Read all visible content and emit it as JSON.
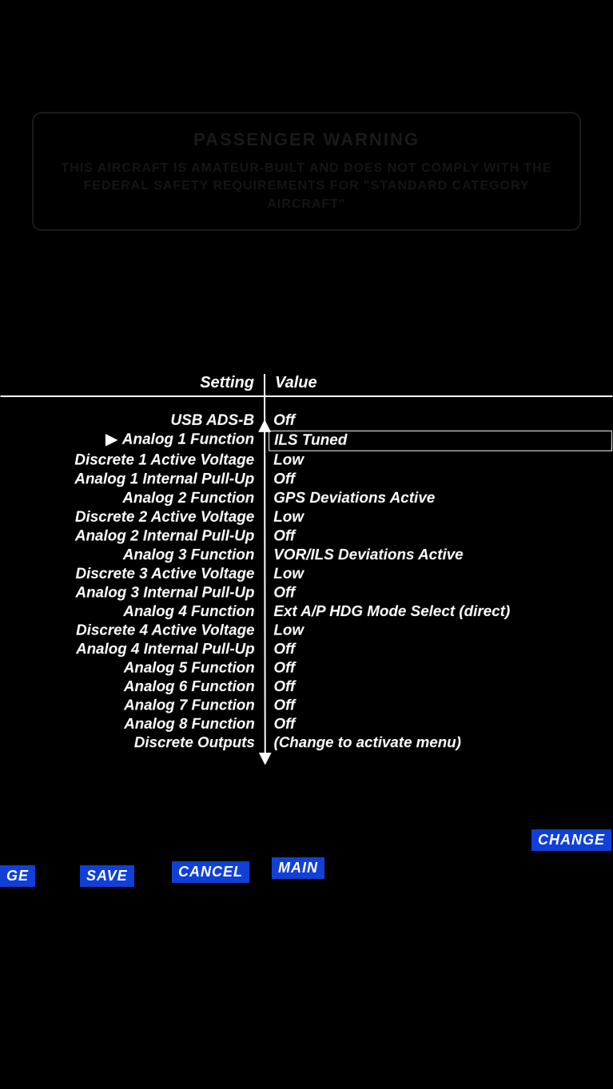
{
  "warning": {
    "title": "PASSENGER WARNING",
    "text": "THIS AIRCRAFT IS AMATEUR-BUILT AND DOES NOT COMPLY WITH THE FEDERAL SAFETY REQUIREMENTS FOR \"STANDARD CATEGORY AIRCRAFT\""
  },
  "headers": {
    "setting": "Setting",
    "value": "Value"
  },
  "selected_index": 1,
  "cursor_glyph": "▶",
  "rows": [
    {
      "label": "USB ADS-B",
      "value": "Off"
    },
    {
      "label": "Analog 1 Function",
      "value": "ILS Tuned"
    },
    {
      "label": "Discrete 1 Active Voltage",
      "value": "Low"
    },
    {
      "label": "Analog 1 Internal Pull-Up",
      "value": "Off"
    },
    {
      "label": "Analog 2 Function",
      "value": "GPS Deviations Active"
    },
    {
      "label": "Discrete 2 Active Voltage",
      "value": "Low"
    },
    {
      "label": "Analog 2 Internal Pull-Up",
      "value": "Off"
    },
    {
      "label": "Analog 3 Function",
      "value": "VOR/ILS Deviations Active"
    },
    {
      "label": "Discrete 3 Active Voltage",
      "value": "Low"
    },
    {
      "label": "Analog 3 Internal Pull-Up",
      "value": "Off"
    },
    {
      "label": "Analog 4 Function",
      "value": "Ext A/P HDG Mode Select (direct)"
    },
    {
      "label": "Discrete 4 Active Voltage",
      "value": "Low"
    },
    {
      "label": "Analog 4 Internal Pull-Up",
      "value": "Off"
    },
    {
      "label": "Analog 5 Function",
      "value": "Off"
    },
    {
      "label": "Analog 6 Function",
      "value": "Off"
    },
    {
      "label": "Analog 7 Function",
      "value": "Off"
    },
    {
      "label": "Analog 8 Function",
      "value": "Off"
    },
    {
      "label": "Discrete Outputs",
      "value": "(Change to activate menu)"
    }
  ],
  "buttons": {
    "change": "CHANGE",
    "ge": "GE",
    "save": "SAVE",
    "cancel": "CANCEL",
    "main": "MAIN"
  },
  "colors": {
    "background": "#000000",
    "text": "#ffffff",
    "button_bg": "#1040d8",
    "button_text": "#ffffff",
    "warning_border": "#1a1a1a",
    "warning_text": "#151515"
  }
}
